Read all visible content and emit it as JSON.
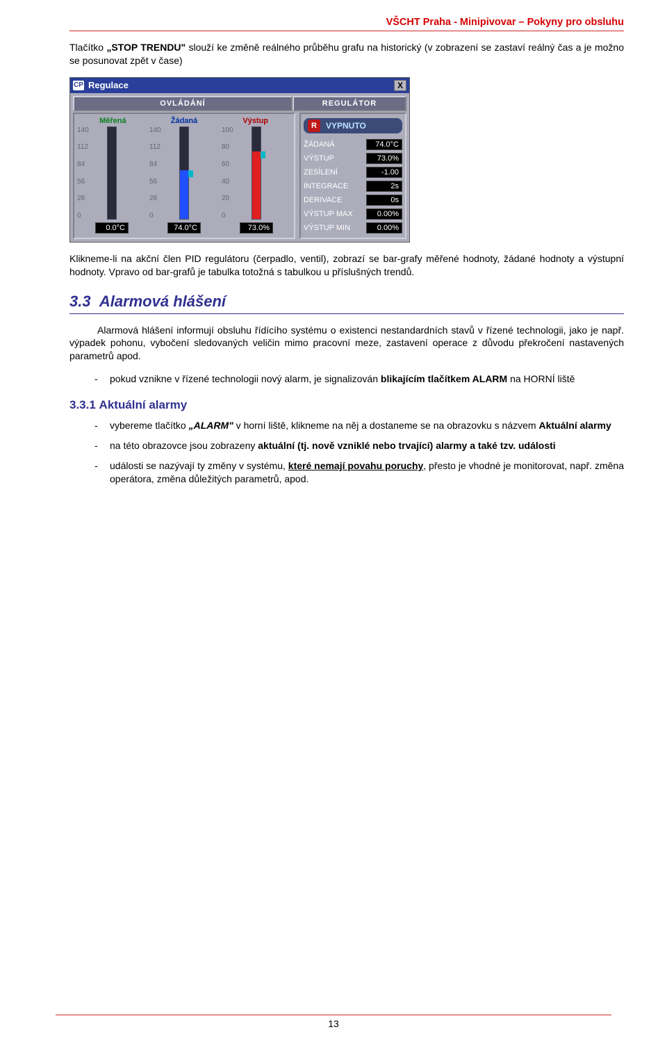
{
  "header": {
    "text": "VŠCHT Praha - Minipivovar – Pokyny pro obsluhu"
  },
  "intro_para": {
    "pre": "Tlačítko ",
    "btn": "„STOP TRENDU\"",
    "post": " slouží ke změně reálného průběhu grafu na historický (v zobrazení se zastaví reálný čas a je možno se posunovat zpět v čase)"
  },
  "regulace": {
    "title": "Regulace",
    "logo": "CP",
    "close": "X",
    "ovladani_label": "OVLÁDÁNÍ",
    "regulator_label": "REGULÁTOR",
    "columns": {
      "merena": {
        "label": "Měřená",
        "ticks": [
          "140",
          "112",
          "84",
          "56",
          "28",
          "0"
        ],
        "value_display": "0.0°C",
        "fill_pct": 0
      },
      "zadana": {
        "label": "Žádaná",
        "ticks": [
          "140",
          "112",
          "84",
          "56",
          "28",
          "0"
        ],
        "value_display": "74.0°C",
        "fill_pct": 53,
        "cursor_top_pct": 47
      },
      "vystup": {
        "label": "Výstup",
        "ticks": [
          "100",
          "80",
          "60",
          "40",
          "20",
          "0"
        ],
        "value_display": "73.0%",
        "fill_pct": 73,
        "cursor_top_pct": 27
      }
    },
    "regulator": {
      "button_icon": "R",
      "button_text": "VYPNUTO",
      "rows": [
        {
          "label": "ŽÁDANÁ",
          "value": "74.0°C"
        },
        {
          "label": "VÝSTUP",
          "value": "73.0%"
        },
        {
          "label": "ZESÍLENÍ",
          "value": "-1.00"
        },
        {
          "label": "INTEGRACE",
          "value": "2s"
        },
        {
          "label": "DERIVACE",
          "value": "0s"
        },
        {
          "label": "VÝSTUP MAX",
          "value": "0.00%"
        },
        {
          "label": "VÝSTUP MIN",
          "value": "0.00%"
        }
      ]
    },
    "colors": {
      "titlebar": "#2a3f9a",
      "panel_bg": "#acacbb",
      "merena_color": "#0a8020",
      "zadana_color": "#0030a0",
      "vystup_color": "#b00000",
      "bar_green": "#18c030",
      "bar_blue": "#2050ff",
      "bar_red": "#e02020",
      "value_bg": "#000000"
    }
  },
  "after_panel_para": "Klikneme-li na akční člen PID regulátoru (čerpadlo, ventil), zobrazí se bar-grafy měřené hodnoty, žádané hodnoty a výstupní hodnoty. Vpravo od bar-grafů je tabulka totožná s tabulkou u příslušných trendů.",
  "section33": {
    "number": "3.3",
    "title": "Alarmová hlášení",
    "para": "Alarmová hlášení informují obsluhu řídícího systému o existenci nestandardních stavů v řízené technologii, jako je např. výpadek pohonu, vybočení sledovaných veličin mimo pracovní meze, zastavení operace z důvodu překročení nastavených parametrů apod.",
    "bullet": {
      "pre": "pokud vznikne v řízené technologii nový alarm, je signalizován ",
      "bold": "blikajícím tlačítkem ALARM",
      "post": " na HORNÍ liště"
    }
  },
  "section331": {
    "number": "3.3.1",
    "title": "Aktuální alarmy",
    "bullets": {
      "b1": {
        "pre": "vybereme tlačítko ",
        "btn": "„ALARM\"",
        "mid": " v horní liště, klikneme na něj a dostaneme se na obrazovku s názvem ",
        "tail": "Aktuální alarmy"
      },
      "b2": {
        "pre": "na této obrazovce jsou zobrazeny ",
        "b2a": "aktuální (tj. nově vzniklé nebo trvající) alarmy a také tzv. události"
      },
      "b3": {
        "pre": "události se nazývají ty změny v systému, ",
        "u": "které nemají povahu poruchy",
        "post": ", přesto je vhodné je monitorovat, např. změna operátora, změna důležitých parametrů, apod."
      }
    }
  },
  "footer": {
    "page": "13"
  }
}
